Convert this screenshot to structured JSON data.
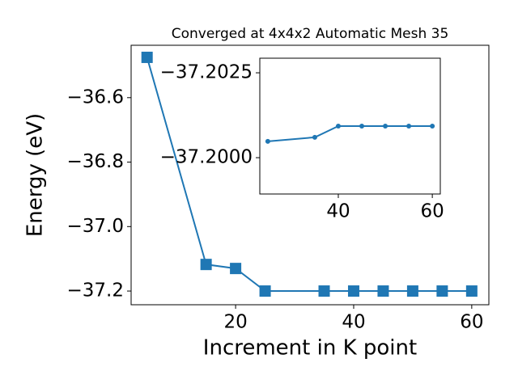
{
  "chart_data": [
    {
      "type": "line",
      "title": "Converged at 4x4x2 Automatic Mesh 35",
      "x_label": "Increment in K point",
      "y_label": "Energy (eV)",
      "x": [
        5,
        15,
        20,
        25,
        35,
        40,
        45,
        50,
        55,
        60
      ],
      "series": [
        {
          "color": "#1f77b4",
          "marker": "square",
          "values": [
            -36.475,
            -37.1175,
            -37.13,
            -37.2,
            -37.2,
            -37.2,
            -37.2,
            -37.2,
            -37.2,
            -37.2
          ]
        }
      ],
      "xlim": [
        2.3,
        62.9
      ],
      "ylim": [
        -37.2425,
        -36.4375
      ],
      "xticks": [
        20,
        40,
        60
      ],
      "yticks": [
        {
          "value": -36.6,
          "label": "−36.6"
        },
        {
          "value": -36.8,
          "label": "−36.8"
        },
        {
          "value": -37.0,
          "label": "−37.0"
        },
        {
          "value": -37.2,
          "label": "−37.2"
        }
      ]
    },
    {
      "type": "line",
      "x": [
        25,
        35,
        40,
        45,
        50,
        55,
        60
      ],
      "series": [
        {
          "color": "#1f77b4",
          "marker": "circle",
          "values": [
            -37.20048,
            -37.2006,
            -37.20093,
            -37.20093,
            -37.20093,
            -37.20093,
            -37.20093
          ]
        }
      ],
      "xlim": [
        23.3,
        61.7
      ],
      "ylim": [
        -37.19893,
        -37.20293
      ],
      "xticks": [
        40,
        60
      ],
      "yticks": [
        {
          "value": -37.2025,
          "label": "−37.2025"
        },
        {
          "value": -37.2,
          "label": "−37.2000"
        }
      ]
    }
  ]
}
